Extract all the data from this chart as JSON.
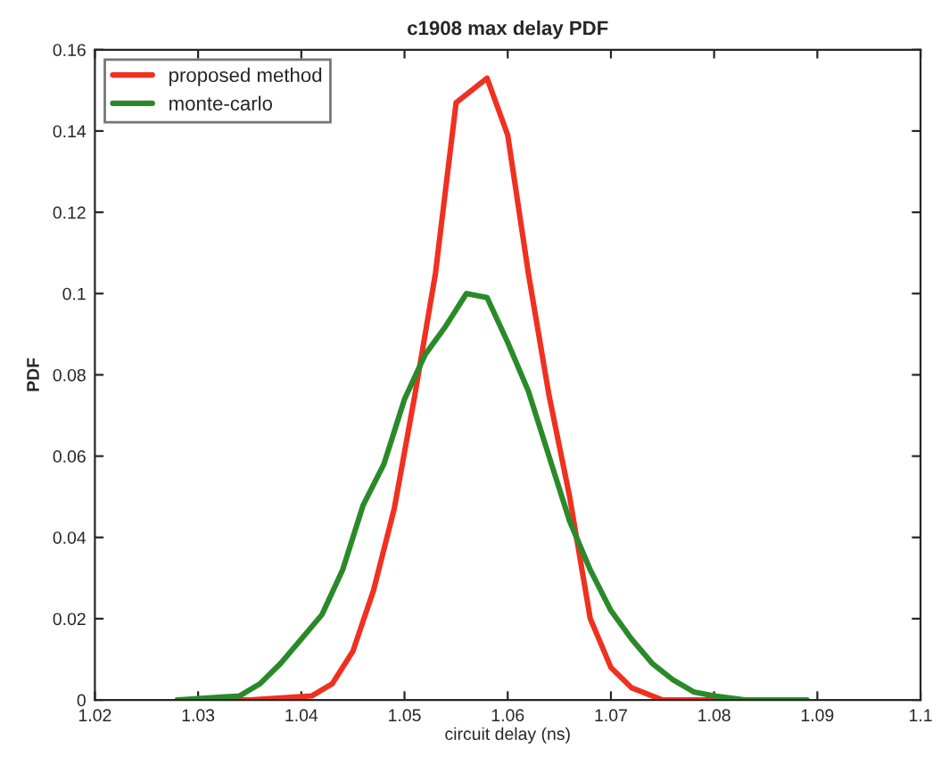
{
  "chart_data": {
    "type": "line",
    "title": "c1908 max delay PDF",
    "xlabel": "circuit delay (ns)",
    "ylabel": "PDF",
    "xlim": [
      1.02,
      1.1
    ],
    "xticks": [
      1.02,
      1.03,
      1.04,
      1.05,
      1.06,
      1.07,
      1.08,
      1.09,
      1.1
    ],
    "ylim": [
      0,
      0.16
    ],
    "yticks": [
      0,
      0.02,
      0.04,
      0.06,
      0.08,
      0.1,
      0.12,
      0.14,
      0.16
    ],
    "grid": false,
    "legend": "top left",
    "marker": "none",
    "line_style": "solid",
    "series": [
      {
        "name": "proposed method",
        "color": "#f03020",
        "x": [
          1.028,
          1.035,
          1.041,
          1.043,
          1.045,
          1.047,
          1.049,
          1.051,
          1.053,
          1.055,
          1.058,
          1.06,
          1.062,
          1.064,
          1.066,
          1.068,
          1.07,
          1.072,
          1.075,
          1.08
        ],
        "values": [
          0,
          0,
          0.001,
          0.004,
          0.012,
          0.027,
          0.047,
          0.075,
          0.105,
          0.147,
          0.153,
          0.139,
          0.105,
          0.075,
          0.05,
          0.02,
          0.008,
          0.003,
          0,
          0
        ]
      },
      {
        "name": "monte-carlo",
        "color": "#2a8a2a",
        "x": [
          1.028,
          1.034,
          1.036,
          1.038,
          1.04,
          1.042,
          1.044,
          1.046,
          1.048,
          1.05,
          1.052,
          1.054,
          1.056,
          1.058,
          1.06,
          1.062,
          1.064,
          1.066,
          1.068,
          1.07,
          1.072,
          1.074,
          1.076,
          1.078,
          1.08,
          1.083,
          1.089
        ],
        "values": [
          0,
          0.001,
          0.004,
          0.009,
          0.015,
          0.021,
          0.032,
          0.048,
          0.058,
          0.074,
          0.085,
          0.092,
          0.1,
          0.099,
          0.088,
          0.076,
          0.06,
          0.044,
          0.032,
          0.022,
          0.015,
          0.009,
          0.005,
          0.002,
          0.001,
          0,
          0
        ]
      }
    ]
  }
}
